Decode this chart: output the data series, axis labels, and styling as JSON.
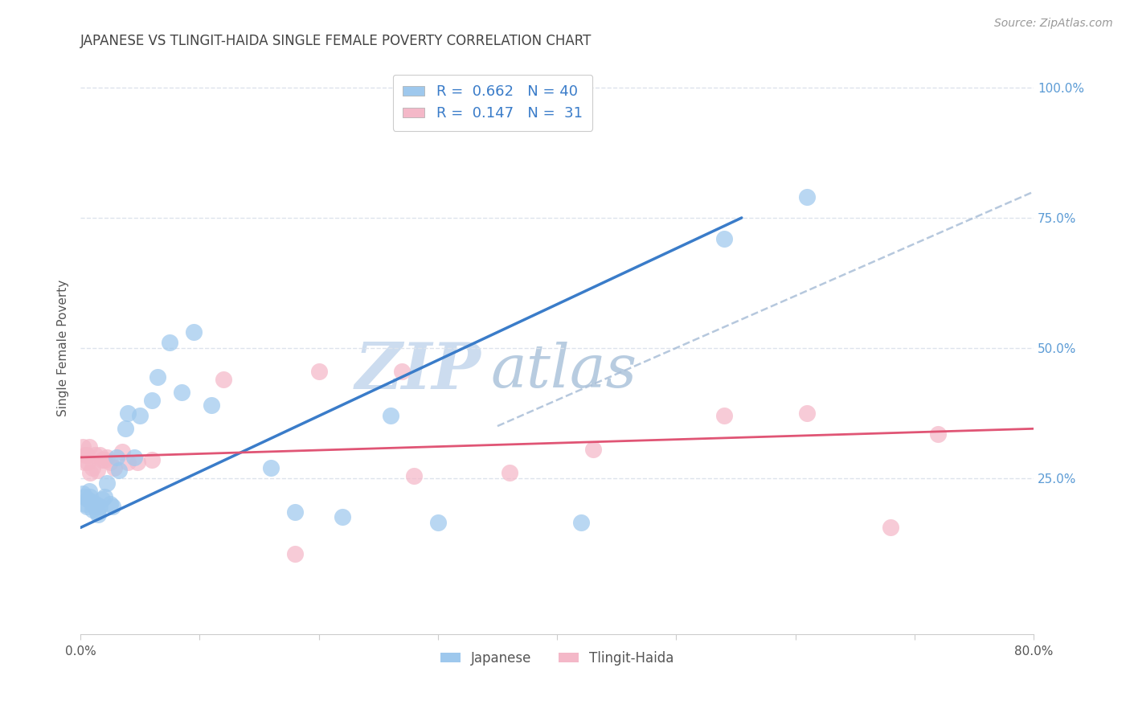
{
  "title": "JAPANESE VS TLINGIT-HAIDA SINGLE FEMALE POVERTY CORRELATION CHART",
  "source": "Source: ZipAtlas.com",
  "ylabel": "Single Female Poverty",
  "xlim": [
    0.0,
    0.8
  ],
  "ylim": [
    -0.05,
    1.05
  ],
  "xticks": [
    0.0,
    0.1,
    0.2,
    0.3,
    0.4,
    0.5,
    0.6,
    0.7,
    0.8
  ],
  "xtick_labels": [
    "0.0%",
    "",
    "",
    "",
    "",
    "",
    "",
    "",
    "80.0%"
  ],
  "yticks_right": [
    0.25,
    0.5,
    0.75,
    1.0
  ],
  "ytick_labels_right": [
    "25.0%",
    "50.0%",
    "75.0%",
    "100.0%"
  ],
  "japanese_x": [
    0.002,
    0.003,
    0.004,
    0.005,
    0.006,
    0.007,
    0.008,
    0.009,
    0.01,
    0.011,
    0.012,
    0.013,
    0.014,
    0.015,
    0.016,
    0.018,
    0.02,
    0.022,
    0.025,
    0.027,
    0.03,
    0.032,
    0.038,
    0.04,
    0.045,
    0.05,
    0.06,
    0.065,
    0.075,
    0.085,
    0.095,
    0.11,
    0.16,
    0.18,
    0.22,
    0.26,
    0.3,
    0.42,
    0.54,
    0.61
  ],
  "japanese_y": [
    0.22,
    0.215,
    0.2,
    0.195,
    0.21,
    0.225,
    0.215,
    0.205,
    0.19,
    0.2,
    0.195,
    0.2,
    0.185,
    0.18,
    0.195,
    0.21,
    0.215,
    0.24,
    0.2,
    0.195,
    0.29,
    0.265,
    0.345,
    0.375,
    0.29,
    0.37,
    0.4,
    0.445,
    0.51,
    0.415,
    0.53,
    0.39,
    0.27,
    0.185,
    0.175,
    0.37,
    0.165,
    0.165,
    0.71,
    0.79
  ],
  "tlingit_x": [
    0.002,
    0.003,
    0.004,
    0.005,
    0.006,
    0.007,
    0.008,
    0.01,
    0.012,
    0.014,
    0.016,
    0.018,
    0.02,
    0.022,
    0.025,
    0.028,
    0.035,
    0.04,
    0.048,
    0.06,
    0.12,
    0.18,
    0.2,
    0.27,
    0.28,
    0.36,
    0.43,
    0.54,
    0.61,
    0.68,
    0.72
  ],
  "tlingit_y": [
    0.31,
    0.28,
    0.295,
    0.295,
    0.28,
    0.31,
    0.26,
    0.27,
    0.295,
    0.265,
    0.295,
    0.285,
    0.285,
    0.29,
    0.28,
    0.27,
    0.3,
    0.28,
    0.28,
    0.285,
    0.44,
    0.105,
    0.455,
    0.455,
    0.255,
    0.26,
    0.305,
    0.37,
    0.375,
    0.155,
    0.335
  ],
  "blue_line_x": [
    0.0,
    0.555
  ],
  "blue_line_y": [
    0.155,
    0.75
  ],
  "pink_line_x": [
    0.0,
    0.8
  ],
  "pink_line_y": [
    0.29,
    0.345
  ],
  "ref_line_x": [
    0.35,
    1.05
  ],
  "ref_line_y": [
    0.35,
    1.05
  ],
  "blue_color": "#9ec8ed",
  "pink_color": "#f4b8c8",
  "blue_line_color": "#3a7cc9",
  "pink_line_color": "#e05575",
  "ref_line_color": "#aabfd8",
  "grid_color": "#dde3ec",
  "bg_color": "#ffffff",
  "title_color": "#444444",
  "axis_label_color": "#555555",
  "right_tick_color": "#5b9bd5",
  "watermark_zip_color": "#c8d8ed",
  "watermark_atlas_color": "#b8cce0"
}
